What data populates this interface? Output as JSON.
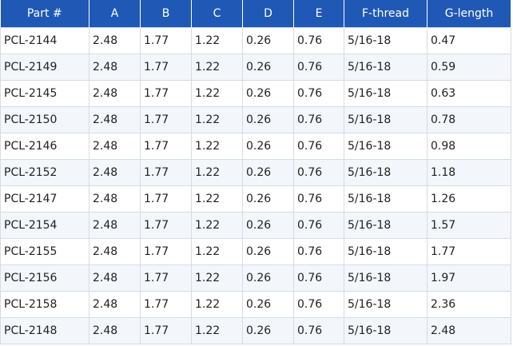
{
  "table": {
    "headers": [
      "Part #",
      "A",
      "B",
      "C",
      "D",
      "E",
      "F-thread",
      "G-length"
    ],
    "rows": [
      [
        "PCL-2144",
        "2.48",
        "1.77",
        "1.22",
        "0.26",
        "0.76",
        "5/16-18",
        "0.47"
      ],
      [
        "PCL-2149",
        "2.48",
        "1.77",
        "1.22",
        "0.26",
        "0.76",
        "5/16-18",
        "0.59"
      ],
      [
        "PCL-2145",
        "2.48",
        "1.77",
        "1.22",
        "0.26",
        "0.76",
        "5/16-18",
        "0.63"
      ],
      [
        "PCL-2150",
        "2.48",
        "1.77",
        "1.22",
        "0.26",
        "0.76",
        "5/16-18",
        "0.78"
      ],
      [
        "PCL-2146",
        "2.48",
        "1.77",
        "1.22",
        "0.26",
        "0.76",
        "5/16-18",
        "0.98"
      ],
      [
        "PCL-2152",
        "2.48",
        "1.77",
        "1.22",
        "0.26",
        "0.76",
        "5/16-18",
        "1.18"
      ],
      [
        "PCL-2147",
        "2.48",
        "1.77",
        "1.22",
        "0.26",
        "0.76",
        "5/16-18",
        "1.26"
      ],
      [
        "PCL-2154",
        "2.48",
        "1.77",
        "1.22",
        "0.26",
        "0.76",
        "5/16-18",
        "1.57"
      ],
      [
        "PCL-2155",
        "2.48",
        "1.77",
        "1.22",
        "0.26",
        "0.76",
        "5/16-18",
        "1.77"
      ],
      [
        "PCL-2156",
        "2.48",
        "1.77",
        "1.22",
        "0.26",
        "0.76",
        "5/16-18",
        "1.97"
      ],
      [
        "PCL-2158",
        "2.48",
        "1.77",
        "1.22",
        "0.26",
        "0.76",
        "5/16-18",
        "2.36"
      ],
      [
        "PCL-2148",
        "2.48",
        "1.77",
        "1.22",
        "0.26",
        "0.76",
        "5/16-18",
        "2.48"
      ]
    ]
  },
  "colors": {
    "header_background": "#1f58b5",
    "header_text": "#ffffff",
    "row_stripe": "#f3f6fb",
    "grid_line": "#d5dbe6"
  }
}
